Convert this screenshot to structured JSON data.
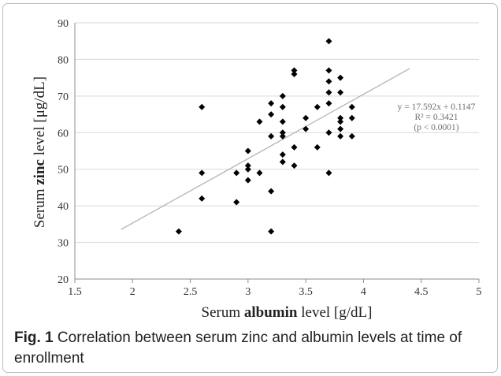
{
  "chart_data": {
    "type": "scatter",
    "xlabel_pre": "Serum ",
    "xlabel_bold": "albumin",
    "xlabel_post": " level [g/dL]",
    "ylabel_pre": "Serum ",
    "ylabel_bold": "zinc",
    "ylabel_post": " level [μg/dL]",
    "xlim": [
      1.5,
      5
    ],
    "ylim": [
      20,
      90
    ],
    "x_ticks": [
      "1.5",
      "2",
      "2.5",
      "3",
      "3.5",
      "4",
      "4.5",
      "5"
    ],
    "y_ticks": [
      "20",
      "30",
      "40",
      "50",
      "60",
      "70",
      "80",
      "90"
    ],
    "grid": "horizontal",
    "points": [
      [
        2.4,
        33
      ],
      [
        2.6,
        67
      ],
      [
        2.6,
        49
      ],
      [
        2.6,
        42
      ],
      [
        2.9,
        49
      ],
      [
        2.9,
        41
      ],
      [
        3.0,
        55
      ],
      [
        3.0,
        51
      ],
      [
        3.0,
        50
      ],
      [
        3.0,
        47
      ],
      [
        3.1,
        63
      ],
      [
        3.1,
        49
      ],
      [
        3.2,
        68
      ],
      [
        3.2,
        65
      ],
      [
        3.2,
        59
      ],
      [
        3.2,
        44
      ],
      [
        3.2,
        33
      ],
      [
        3.3,
        70
      ],
      [
        3.3,
        67
      ],
      [
        3.3,
        63
      ],
      [
        3.3,
        60
      ],
      [
        3.3,
        59
      ],
      [
        3.3,
        54
      ],
      [
        3.3,
        52
      ],
      [
        3.4,
        77
      ],
      [
        3.4,
        76
      ],
      [
        3.4,
        56
      ],
      [
        3.4,
        51
      ],
      [
        3.5,
        64
      ],
      [
        3.5,
        61
      ],
      [
        3.6,
        67
      ],
      [
        3.6,
        56
      ],
      [
        3.7,
        85
      ],
      [
        3.7,
        77
      ],
      [
        3.7,
        74
      ],
      [
        3.7,
        71
      ],
      [
        3.7,
        68
      ],
      [
        3.7,
        60
      ],
      [
        3.7,
        49
      ],
      [
        3.8,
        75
      ],
      [
        3.8,
        71
      ],
      [
        3.8,
        64
      ],
      [
        3.8,
        63
      ],
      [
        3.8,
        61
      ],
      [
        3.8,
        59
      ],
      [
        3.9,
        67
      ],
      [
        3.9,
        64
      ],
      [
        3.9,
        59
      ]
    ],
    "trendline": {
      "slope": 17.592,
      "intercept": 0.1147,
      "x_range": [
        1.9,
        4.4
      ]
    },
    "annotations": [
      "y = 17.592x + 0.1147",
      "R² = 0.3421",
      "(p < 0.0001)"
    ],
    "colors": {
      "points": "#000000",
      "trendline": "#b4b4b4",
      "grid": "#d9d9d9",
      "axis": "#8c8c8c",
      "annotation": "#6e6e6e"
    }
  },
  "caption": {
    "label": "Fig. 1",
    "text": " Correlation between serum zinc and albumin levels at time of enrollment"
  }
}
